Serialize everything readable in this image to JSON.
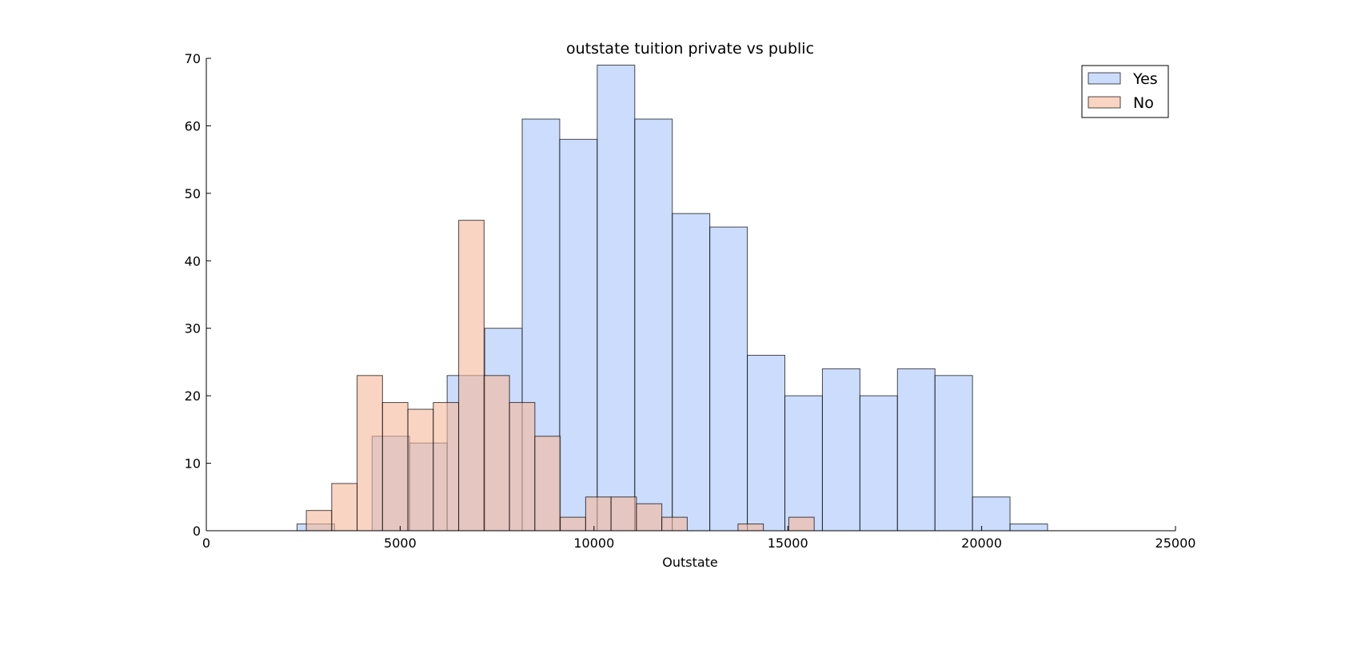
{
  "chart_data": {
    "type": "bar",
    "subtype": "overlaid-histogram",
    "title": "outstate tuition private vs public",
    "xlabel": "Outstate",
    "ylabel": "",
    "xlim": [
      0,
      25000
    ],
    "ylim": [
      0,
      70
    ],
    "xticks": [
      0,
      5000,
      10000,
      15000,
      20000,
      25000
    ],
    "yticks": [
      0,
      10,
      20,
      30,
      40,
      50,
      60,
      70
    ],
    "grid": false,
    "legend_position": "top-right",
    "series": [
      {
        "name": "Yes",
        "color": "#a8c4fb",
        "bin_start": 2340,
        "bin_width": 968,
        "counts": [
          1,
          0,
          14,
          13,
          23,
          30,
          61,
          58,
          69,
          61,
          47,
          45,
          26,
          20,
          24,
          20,
          24,
          23,
          5,
          1
        ]
      },
      {
        "name": "No",
        "color": "#f7b89a",
        "bin_start": 2580,
        "bin_width": 655,
        "counts": [
          3,
          7,
          23,
          19,
          18,
          19,
          46,
          23,
          19,
          14,
          2,
          5,
          5,
          4,
          2,
          0,
          0,
          1,
          0,
          2
        ]
      }
    ]
  }
}
